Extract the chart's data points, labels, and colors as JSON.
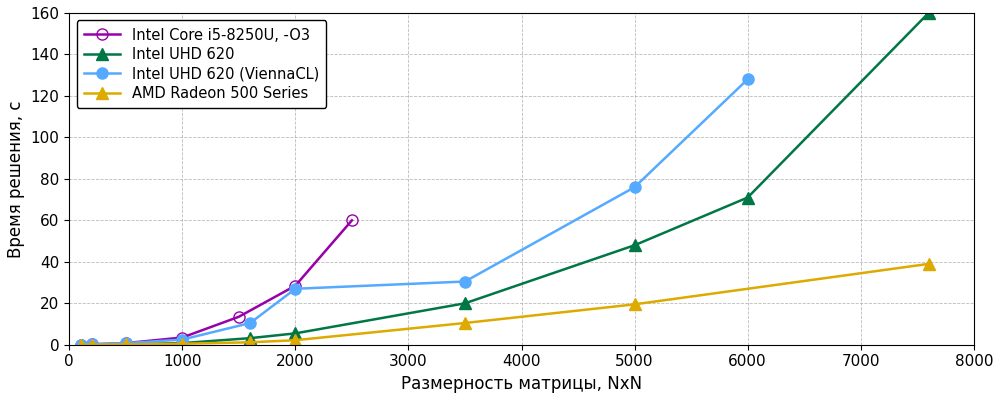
{
  "series": [
    {
      "label": "Intel Core i5-8250U, -O3",
      "color": "#9900aa",
      "marker": "o",
      "markerfacecolor": "none",
      "markersize": 8,
      "linewidth": 1.8,
      "x": [
        100,
        200,
        500,
        1000,
        1500,
        2000,
        2500
      ],
      "y": [
        0.05,
        0.2,
        0.8,
        3.5,
        13.5,
        28.5,
        60.0
      ]
    },
    {
      "label": "Intel UHD 620",
      "color": "#007744",
      "marker": "^",
      "markerfacecolor": "#007744",
      "markersize": 8,
      "linewidth": 1.8,
      "x": [
        100,
        200,
        500,
        1000,
        1600,
        2000,
        3500,
        5000,
        6000,
        7600
      ],
      "y": [
        0.02,
        0.05,
        0.2,
        0.8,
        3.2,
        5.5,
        20.0,
        48.0,
        71.0,
        160.0
      ]
    },
    {
      "label": "Intel UHD 620 (ViennaCL)",
      "color": "#55aaff",
      "marker": "o",
      "markerfacecolor": "#55aaff",
      "markersize": 8,
      "linewidth": 1.8,
      "x": [
        100,
        200,
        500,
        1000,
        1600,
        2000,
        3500,
        5000,
        6000
      ],
      "y": [
        0.1,
        0.3,
        0.8,
        2.5,
        10.5,
        27.0,
        30.5,
        76.0,
        128.0
      ]
    },
    {
      "label": "AMD Radeon 500 Series",
      "color": "#ddaa00",
      "marker": "^",
      "markerfacecolor": "#ddaa00",
      "markersize": 8,
      "linewidth": 1.8,
      "x": [
        100,
        200,
        500,
        1000,
        1600,
        2000,
        3500,
        5000,
        7600
      ],
      "y": [
        0.02,
        0.05,
        0.15,
        0.5,
        1.2,
        2.2,
        10.5,
        19.5,
        39.0
      ]
    }
  ],
  "xlabel": "Размерность матрицы, NxN",
  "ylabel": "Время решения, с",
  "xlim": [
    0,
    8000
  ],
  "ylim": [
    0,
    160
  ],
  "xticks": [
    0,
    1000,
    2000,
    3000,
    4000,
    5000,
    6000,
    7000,
    8000
  ],
  "yticks": [
    0,
    20,
    40,
    60,
    80,
    100,
    120,
    140,
    160
  ],
  "grid": true,
  "legend_loc": "upper left",
  "background_color": "#ffffff",
  "tick_fontsize": 11,
  "label_fontsize": 12,
  "legend_fontsize": 10.5
}
